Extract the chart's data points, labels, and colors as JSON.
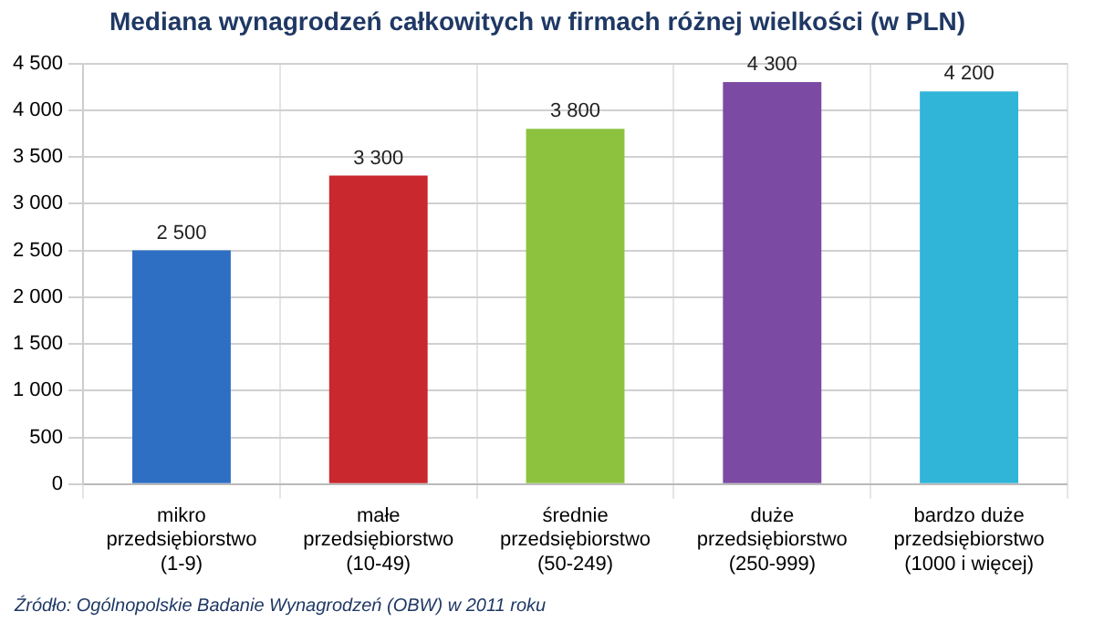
{
  "chart_data": {
    "type": "bar",
    "title": "Mediana wynagrodzeń całkowitych w firmach różnej wielkości (w PLN)",
    "categories": [
      "mikro przedsiębiorstwo (1-9)",
      "małe przedsiębiorstwo (10-49)",
      "średnie przedsiębiorstwo (50-249)",
      "duże przedsiębiorstwo (250-999)",
      "bardzo duże przedsiębiorstwo (1000 i więcej)"
    ],
    "values": [
      2500,
      3300,
      3800,
      4300,
      4200
    ],
    "colors": [
      "#2e6fc4",
      "#c9282e",
      "#8dc23f",
      "#7b4aa3",
      "#30b4d8"
    ],
    "value_labels": [
      "2 500",
      "3 300",
      "3 800",
      "4 300",
      "4 200"
    ],
    "ylim": [
      0,
      4500
    ],
    "yticks": [
      0,
      500,
      {
        "value": 1000,
        "label": "1 000"
      },
      {
        "value": 1500,
        "label": "1 500"
      },
      {
        "value": 2000,
        "label": "2 000"
      },
      {
        "value": 2500,
        "label": "2 500"
      },
      {
        "value": 3000,
        "label": "3 000"
      },
      {
        "value": 3500,
        "label": "3 500"
      },
      {
        "value": 4000,
        "label": "4 000"
      },
      {
        "value": 4500,
        "label": "4 500"
      }
    ],
    "grid": true,
    "annotations": [
      "Źródło: Ogólnopolskie Badanie Wynagrodzeń (OBW) w 2011 roku"
    ]
  }
}
